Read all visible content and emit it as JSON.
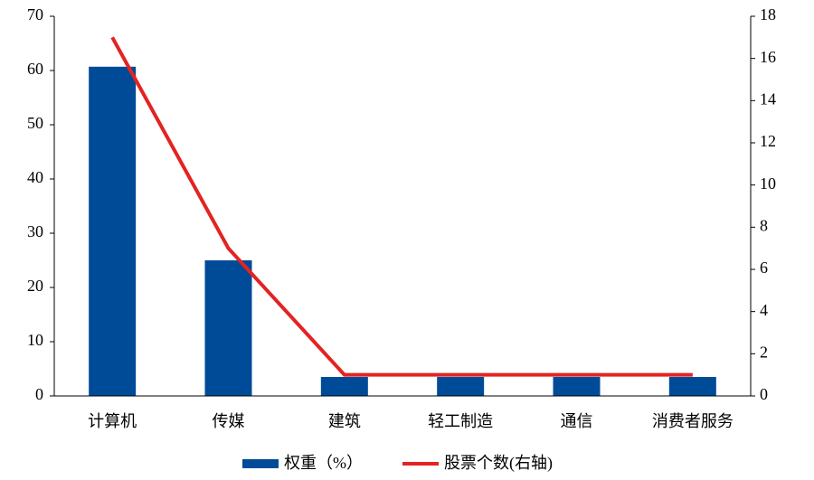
{
  "chart_data": {
    "type": "bar",
    "categories": [
      "计算机",
      "传媒",
      "建筑",
      "轻工制造",
      "通信",
      "消费者服务"
    ],
    "series": [
      {
        "name": "权重（%）",
        "type": "bar",
        "color": "#004b97",
        "values": [
          60.7,
          25,
          3.5,
          3.5,
          3.5,
          3.5
        ]
      },
      {
        "name": "股票个数(右轴)",
        "type": "line",
        "axis": "y2",
        "color": "#e32322",
        "values": [
          17,
          7,
          1,
          1,
          1,
          1
        ]
      }
    ],
    "ylim": [
      0,
      70
    ],
    "yticks": [
      0,
      10,
      20,
      30,
      40,
      50,
      60,
      70
    ],
    "y2lim": [
      0,
      18
    ],
    "y2ticks": [
      0,
      2,
      4,
      6,
      8,
      10,
      12,
      14,
      16,
      18
    ],
    "legend": "bottom"
  }
}
